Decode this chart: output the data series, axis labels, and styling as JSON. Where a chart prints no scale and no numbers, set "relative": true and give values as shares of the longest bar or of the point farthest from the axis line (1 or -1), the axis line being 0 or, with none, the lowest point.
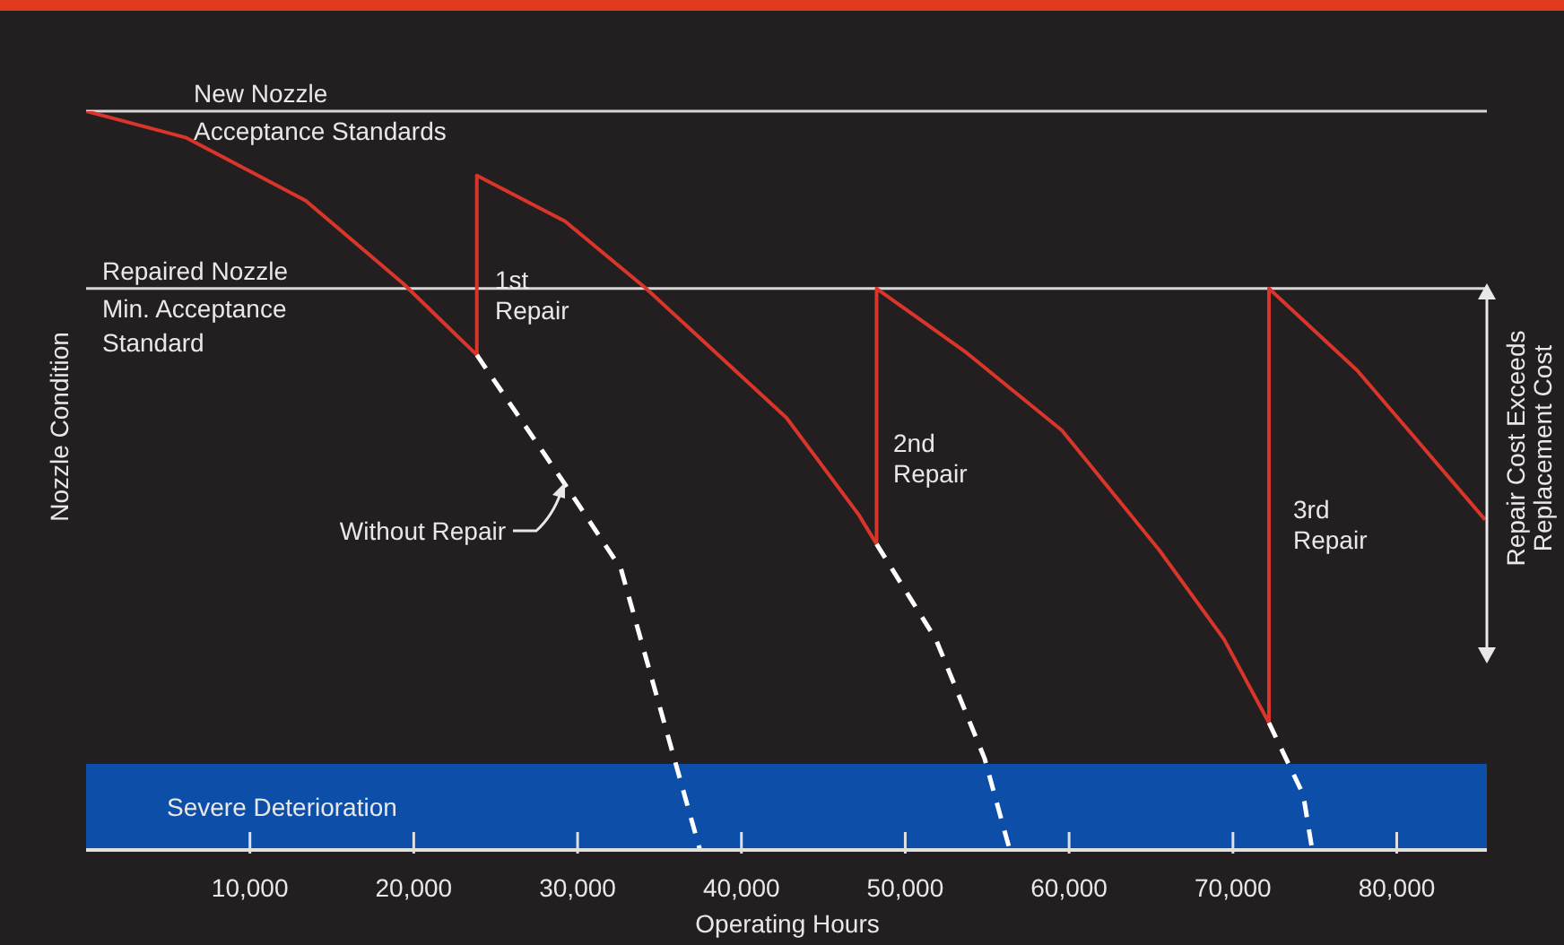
{
  "chart_data": {
    "type": "line",
    "relative": true,
    "xlabel": "Operating Hours",
    "ylabel": "Nozzle Condition",
    "xlim": [
      0,
      85500
    ],
    "xticks": [
      {
        "value": 10000,
        "label": "10,000"
      },
      {
        "value": 20000,
        "label": "20,000"
      },
      {
        "value": 30000,
        "label": "30,000"
      },
      {
        "value": 40000,
        "label": "40,000"
      },
      {
        "value": 50000,
        "label": "50,000"
      },
      {
        "value": 60000,
        "label": "60,000"
      },
      {
        "value": 70000,
        "label": "70,000"
      },
      {
        "value": 80000,
        "label": "80,000"
      }
    ],
    "series": [
      {
        "color": "#d9352a",
        "line_style": "solid",
        "x": [
          0,
          6120,
          13400,
          19340,
          23850,
          23850,
          29230,
          34180,
          42750,
          47150,
          48250,
          48250,
          53740,
          59560,
          65500,
          69460,
          72200,
          72200,
          77590,
          85390
        ],
        "values": [
          1.0,
          0.964,
          0.879,
          0.767,
          0.67,
          0.913,
          0.851,
          0.76,
          0.585,
          0.454,
          0.414,
          0.76,
          0.673,
          0.568,
          0.406,
          0.285,
          0.172,
          0.76,
          0.649,
          0.447
        ]
      },
      {
        "color": "#ffffff",
        "line_style": "dashed",
        "x": [
          23850,
          29230,
          32640,
          37470
        ],
        "values": [
          0.67,
          0.495,
          0.381,
          0
        ]
      },
      {
        "color": "#ffffff",
        "line_style": "dashed",
        "x": [
          48250,
          51870,
          54840,
          56380
        ],
        "values": [
          0.414,
          0.285,
          0.124,
          0
        ]
      },
      {
        "color": "#ffffff",
        "line_style": "dashed",
        "x": [
          72200,
          74290,
          74840
        ],
        "values": [
          0.172,
          0.075,
          0
        ]
      }
    ],
    "ref_lines": [
      {
        "axis": "y",
        "value": 1.0,
        "label": "New Nozzle\nAcceptance Standards",
        "color": "#d8d8d8"
      },
      {
        "axis": "y",
        "value": 0.76,
        "label": "Repaired Nozzle\nMin. Acceptance\nStandard",
        "color": "#d8d8d8"
      }
    ],
    "bands": [
      {
        "axis": "y",
        "from": 0,
        "to": 0.1165,
        "label": "Severe Deterioration",
        "color": "#0d4fa8"
      }
    ],
    "annotations": [
      "1st\nRepair",
      "2nd\nRepair",
      "3rd\nRepair",
      {
        "text": "Without Repair",
        "x": 29340,
        "y": 0.5
      },
      "Repair Cost Exceeds\nReplacement Cost"
    ],
    "grid": false,
    "marker": "none"
  }
}
